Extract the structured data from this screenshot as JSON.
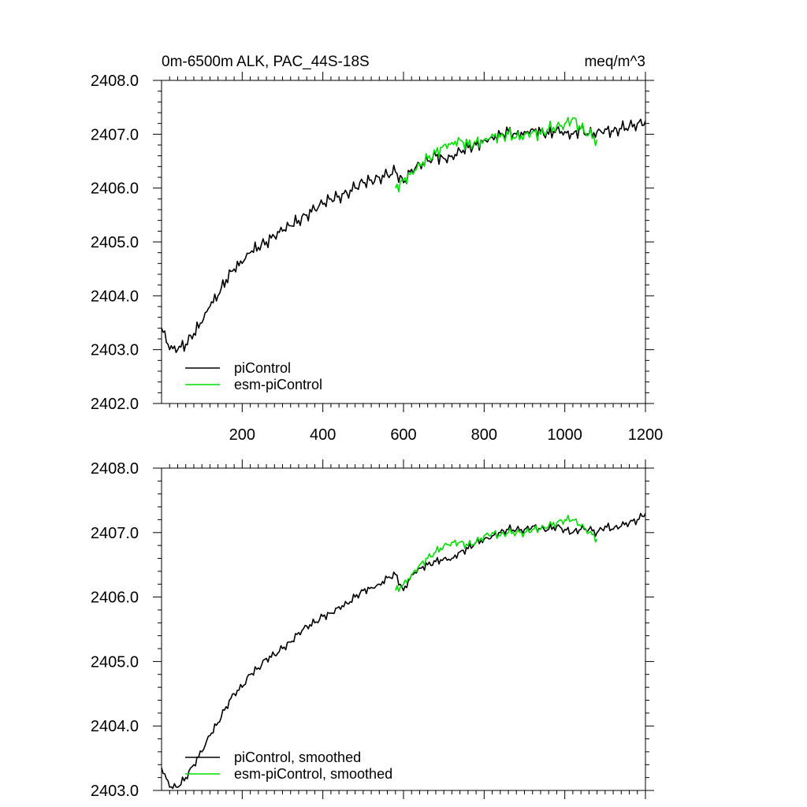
{
  "chart_data": [
    {
      "type": "line",
      "title_left": "0m-6500m ALK, PAC_44S-18S",
      "title_right": "meq/m^3",
      "xlabel": "",
      "ylabel": "",
      "xlim": [
        0,
        1200
      ],
      "ylim": [
        2402.0,
        2408.0
      ],
      "x_ticks": [
        "200",
        "400",
        "600",
        "800",
        "1000",
        "1200"
      ],
      "y_ticks": [
        "2402.0",
        "2403.0",
        "2404.0",
        "2405.0",
        "2406.0",
        "2407.0",
        "2408.0"
      ],
      "legend": {
        "position": "bottom-left",
        "entries": [
          "piControl",
          "esm-piControl"
        ]
      },
      "series": [
        {
          "name": "piControl",
          "color": "#000000",
          "x": [
            0,
            20,
            40,
            60,
            80,
            100,
            120,
            140,
            160,
            180,
            200,
            220,
            240,
            260,
            280,
            300,
            320,
            340,
            360,
            380,
            400,
            420,
            440,
            460,
            480,
            500,
            520,
            540,
            560,
            580,
            600,
            620,
            640,
            660,
            680,
            700,
            720,
            740,
            760,
            780,
            800,
            820,
            840,
            860,
            880,
            900,
            920,
            940,
            960,
            980,
            1000,
            1020,
            1040,
            1060,
            1080,
            1100,
            1120,
            1140,
            1160,
            1180,
            1200
          ],
          "values": [
            2403.4,
            2403.0,
            2403.0,
            2403.1,
            2403.3,
            2403.5,
            2403.8,
            2404.0,
            2404.3,
            2404.5,
            2404.6,
            2404.8,
            2404.9,
            2405.0,
            2405.1,
            2405.2,
            2405.3,
            2405.4,
            2405.5,
            2405.6,
            2405.7,
            2405.8,
            2405.85,
            2405.9,
            2406.0,
            2406.1,
            2406.15,
            2406.2,
            2406.25,
            2406.3,
            2406.1,
            2406.35,
            2406.45,
            2406.5,
            2406.6,
            2406.55,
            2406.6,
            2406.7,
            2406.75,
            2406.8,
            2406.9,
            2406.95,
            2407.0,
            2407.05,
            2407.0,
            2407.05,
            2407.1,
            2407.05,
            2407.0,
            2407.1,
            2407.05,
            2407.0,
            2407.1,
            2407.0,
            2407.05,
            2407.1,
            2407.05,
            2407.1,
            2407.15,
            2407.2,
            2407.25
          ]
        },
        {
          "name": "esm-piControl",
          "color": "#00dd00",
          "x": [
            580,
            600,
            620,
            640,
            660,
            680,
            700,
            720,
            740,
            760,
            780,
            800,
            820,
            840,
            860,
            880,
            900,
            920,
            940,
            960,
            980,
            1000,
            1020,
            1040,
            1060,
            1080
          ],
          "values": [
            2406.0,
            2406.15,
            2406.3,
            2406.45,
            2406.55,
            2406.65,
            2406.8,
            2406.85,
            2406.9,
            2406.8,
            2406.85,
            2406.9,
            2407.0,
            2406.95,
            2407.0,
            2406.95,
            2407.0,
            2407.05,
            2407.0,
            2407.1,
            2407.15,
            2407.2,
            2407.3,
            2407.1,
            2407.0,
            2406.9
          ]
        }
      ]
    },
    {
      "type": "line",
      "xlabel": "",
      "ylabel": "",
      "xlim": [
        0,
        1200
      ],
      "ylim": [
        2403.0,
        2408.0
      ],
      "y_ticks": [
        "2403.0",
        "2404.0",
        "2405.0",
        "2406.0",
        "2407.0",
        "2408.0"
      ],
      "legend": {
        "position": "bottom-left",
        "entries": [
          "piControl, smoothed",
          "esm-piControl, smoothed"
        ]
      },
      "series": [
        {
          "name": "piControl, smoothed",
          "color": "#000000",
          "x": [
            0,
            20,
            40,
            60,
            80,
            100,
            120,
            140,
            160,
            180,
            200,
            220,
            240,
            260,
            280,
            300,
            320,
            340,
            360,
            380,
            400,
            420,
            440,
            460,
            480,
            500,
            520,
            540,
            560,
            580,
            600,
            620,
            640,
            660,
            680,
            700,
            720,
            740,
            760,
            780,
            800,
            820,
            840,
            860,
            880,
            900,
            920,
            940,
            960,
            980,
            1000,
            1020,
            1040,
            1060,
            1080,
            1100,
            1120,
            1140,
            1160,
            1180,
            1200
          ],
          "values": [
            2403.35,
            2403.05,
            2403.05,
            2403.2,
            2403.4,
            2403.6,
            2403.85,
            2404.05,
            2404.3,
            2404.5,
            2404.6,
            2404.8,
            2404.9,
            2405.05,
            2405.1,
            2405.2,
            2405.3,
            2405.45,
            2405.55,
            2405.6,
            2405.7,
            2405.75,
            2405.85,
            2405.9,
            2406.0,
            2406.1,
            2406.15,
            2406.2,
            2406.3,
            2406.35,
            2406.1,
            2406.35,
            2406.45,
            2406.5,
            2406.55,
            2406.6,
            2406.6,
            2406.7,
            2406.75,
            2406.85,
            2406.9,
            2406.95,
            2407.0,
            2407.05,
            2407.05,
            2407.05,
            2407.1,
            2407.05,
            2407.05,
            2407.1,
            2407.05,
            2407.0,
            2407.05,
            2407.05,
            2407.0,
            2407.1,
            2407.05,
            2407.1,
            2407.15,
            2407.2,
            2407.3
          ]
        },
        {
          "name": "esm-piControl, smoothed",
          "color": "#00dd00",
          "x": [
            580,
            600,
            620,
            640,
            660,
            680,
            700,
            720,
            740,
            760,
            780,
            800,
            820,
            840,
            860,
            880,
            900,
            920,
            940,
            960,
            980,
            1000,
            1020,
            1040,
            1060,
            1080
          ],
          "values": [
            2406.1,
            2406.2,
            2406.35,
            2406.5,
            2406.6,
            2406.7,
            2406.8,
            2406.85,
            2406.85,
            2406.8,
            2406.85,
            2406.95,
            2407.0,
            2406.95,
            2407.0,
            2407.0,
            2407.0,
            2407.05,
            2407.05,
            2407.1,
            2407.15,
            2407.2,
            2407.2,
            2407.1,
            2407.0,
            2406.9
          ]
        }
      ]
    }
  ]
}
